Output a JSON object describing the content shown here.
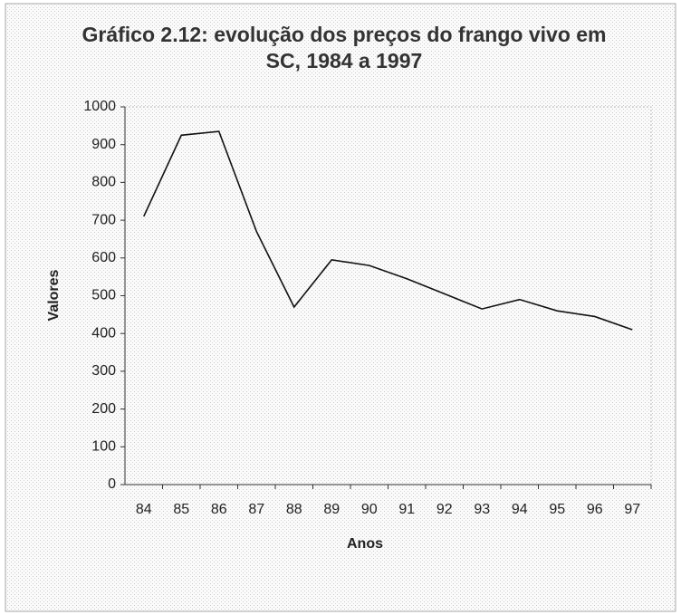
{
  "chart_data": {
    "type": "line",
    "title": "Gráfico 2.12: evolução dos preços do frango vivo em SC, 1984 a 1997",
    "x_label": "Anos",
    "y_label": "Valores",
    "categories": [
      "84",
      "85",
      "86",
      "87",
      "88",
      "89",
      "90",
      "91",
      "92",
      "93",
      "94",
      "95",
      "96",
      "97"
    ],
    "values": [
      710,
      925,
      935,
      670,
      470,
      595,
      580,
      545,
      505,
      465,
      490,
      460,
      445,
      410
    ],
    "color": "#111111",
    "ylim": [
      0,
      1000
    ],
    "yticks": [
      0,
      100,
      200,
      300,
      400,
      500,
      600,
      700,
      800,
      900,
      1000
    ],
    "grid": false
  }
}
